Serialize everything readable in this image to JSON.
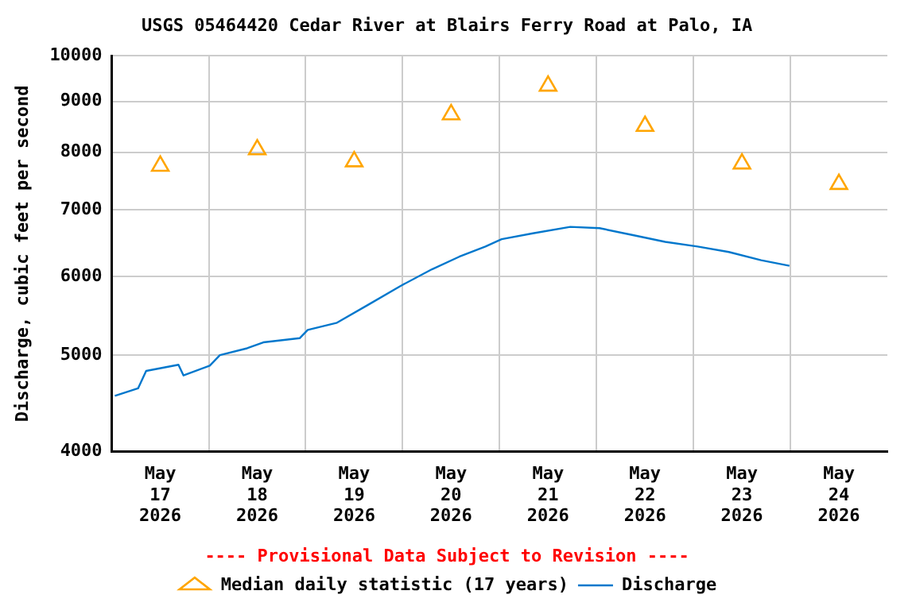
{
  "chart_data": {
    "type": "line",
    "title": "USGS 05464420 Cedar River at Blairs Ferry Road at Palo, IA",
    "ylabel": "Discharge, cubic feet per second",
    "annotations": [
      "---- Provisional Data Subject to Revision ----"
    ],
    "log": "y",
    "grid": true,
    "legend": "bottom",
    "xlim": [
      "2026-05-17T00:00",
      "2026-05-25T00:00"
    ],
    "xticks": [
      {
        "value": "2026-05-17T12:00",
        "label": "May 17 2026"
      },
      {
        "value": "2026-05-18T00:00",
        "label": null
      },
      {
        "value": "2026-05-18T12:00",
        "label": "May 18 2026"
      },
      {
        "value": "2026-05-19T00:00",
        "label": null
      },
      {
        "value": "2026-05-19T12:00",
        "label": "May 19 2026"
      },
      {
        "value": "2026-05-20T00:00",
        "label": null
      },
      {
        "value": "2026-05-20T12:00",
        "label": "May 20 2026"
      },
      {
        "value": "2026-05-21T00:00",
        "label": null
      },
      {
        "value": "2026-05-21T12:00",
        "label": "May 21 2026"
      },
      {
        "value": "2026-05-22T00:00",
        "label": null
      },
      {
        "value": "2026-05-22T12:00",
        "label": "May 22 2026"
      },
      {
        "value": "2026-05-23T00:00",
        "label": null
      },
      {
        "value": "2026-05-23T12:00",
        "label": "May 23 2026"
      },
      {
        "value": "2026-05-24T00:00",
        "label": null
      },
      {
        "value": "2026-05-24T12:00",
        "label": "May 24 2026"
      }
    ],
    "ylim": [
      4000,
      10000
    ],
    "yticks": [
      4000,
      5000,
      6000,
      7000,
      8000,
      9000,
      10000
    ],
    "series": [
      {
        "name": "Median daily statistic (17 years)",
        "type": "scatter",
        "marker": "triangle",
        "color": "#ffa500",
        "x": [
          "2026-05-17T12:00",
          "2026-05-18T12:00",
          "2026-05-19T12:00",
          "2026-05-20T12:00",
          "2026-05-21T12:00",
          "2026-05-22T12:00",
          "2026-05-23T12:00",
          "2026-05-24T12:00"
        ],
        "values": [
          7750,
          8050,
          7830,
          8730,
          9330,
          8500,
          7790,
          7430
        ]
      },
      {
        "name": "Discharge",
        "marker": "none",
        "line_style": "solid",
        "color": "#0077cc",
        "x": [
          "2026-05-17T00:45",
          "2026-05-17T06:30",
          "2026-05-17T08:30",
          "2026-05-17T16:30",
          "2026-05-17T17:45",
          "2026-05-18T00:15",
          "2026-05-18T02:45",
          "2026-05-18T09:30",
          "2026-05-18T13:30",
          "2026-05-18T22:30",
          "2026-05-19T00:30",
          "2026-05-19T07:45",
          "2026-05-19T15:30",
          "2026-05-19T23:30",
          "2026-05-20T07:15",
          "2026-05-20T14:00",
          "2026-05-20T20:30",
          "2026-05-21T00:30",
          "2026-05-21T08:15",
          "2026-05-21T17:30",
          "2026-05-22T00:45",
          "2026-05-22T09:15",
          "2026-05-22T17:00",
          "2026-05-23T01:00",
          "2026-05-23T08:45",
          "2026-05-23T16:45",
          "2026-05-23T23:45"
        ],
        "values": [
          4550,
          4630,
          4820,
          4890,
          4770,
          4880,
          5000,
          5080,
          5150,
          5200,
          5300,
          5390,
          5620,
          5870,
          6100,
          6280,
          6430,
          6540,
          6630,
          6730,
          6710,
          6600,
          6500,
          6430,
          6350,
          6230,
          6150
        ]
      }
    ]
  }
}
